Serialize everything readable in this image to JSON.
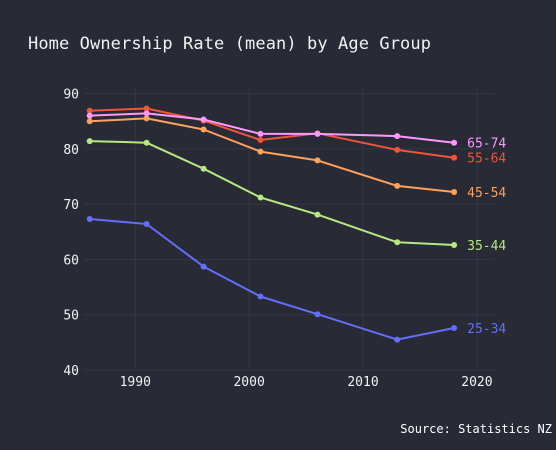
{
  "source_note": "Source: Statistics NZ",
  "chart_data": {
    "type": "line",
    "title": "Home Ownership Rate (mean) by Age Group",
    "xlabel": "",
    "ylabel": "",
    "xlim": [
      1985.5,
      2021.5
    ],
    "ylim": [
      40,
      91
    ],
    "x_ticks": [
      1990,
      2000,
      2010,
      2020
    ],
    "y_ticks": [
      40,
      50,
      60,
      70,
      80,
      90
    ],
    "grid": true,
    "legend": "inline labels at line ends (right)",
    "x": [
      1986,
      1991,
      1996,
      2001,
      2006,
      2013,
      2018
    ],
    "series": [
      {
        "name": "25-34",
        "color": "#636efa",
        "values": [
          67.3,
          66.4,
          58.7,
          53.3,
          50.1,
          45.5,
          47.6
        ]
      },
      {
        "name": "35-44",
        "color": "#b6e880",
        "values": [
          81.4,
          81.1,
          76.4,
          71.2,
          68.1,
          63.1,
          62.6
        ]
      },
      {
        "name": "45-54",
        "color": "#ffa15a",
        "values": [
          85.0,
          85.5,
          83.5,
          79.5,
          77.9,
          73.3,
          72.2
        ]
      },
      {
        "name": "55-64",
        "color": "#ef553b",
        "values": [
          86.9,
          87.3,
          85.1,
          81.6,
          82.8,
          79.8,
          78.4
        ]
      },
      {
        "name": "65-74",
        "color": "#ff97ff",
        "values": [
          86.0,
          86.4,
          85.3,
          82.7,
          82.7,
          82.3,
          81.1
        ]
      }
    ]
  }
}
